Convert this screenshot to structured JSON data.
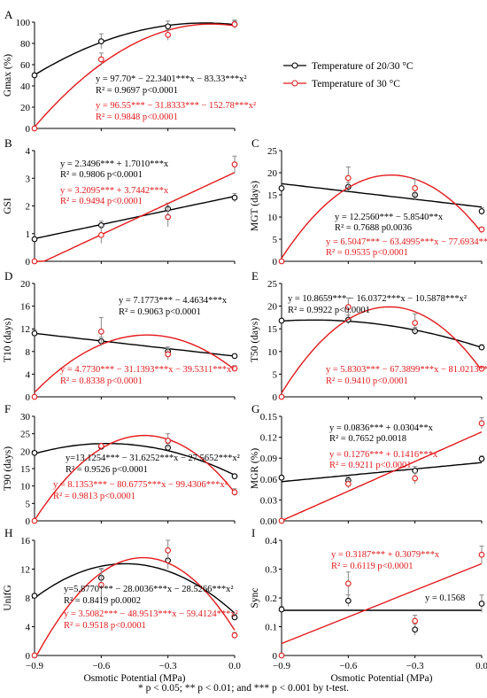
{
  "legend": {
    "entries": [
      {
        "label": "Temperature of 20/30 °C",
        "color": "#000000"
      },
      {
        "label": "Temperature of 30 °C",
        "color": "#e31a1c"
      }
    ]
  },
  "footnote": "* p < 0.05; ** p < 0.01; and *** p < 0.001 by t-test.",
  "colors": {
    "black": "#000000",
    "red": "#e31a1c"
  },
  "chart_data": [
    {
      "id": "A",
      "type": "scatter",
      "xlabel": "",
      "ylabel": "Gmax (%)",
      "xlim": [
        -0.9,
        0.0
      ],
      "ylim": [
        0,
        100
      ],
      "yticks": [
        "0",
        "20",
        "40",
        "60",
        "80",
        "100"
      ],
      "xticks": [],
      "series": [
        {
          "name": "Temperature of 20/30 °C",
          "color": "#000000",
          "x": [
            -0.9,
            -0.6,
            -0.3,
            0.0
          ],
          "y": [
            50,
            82,
            96,
            98
          ],
          "err": [
            2,
            7,
            5,
            3
          ],
          "fit": {
            "type": "quad",
            "a": 97.7,
            "b": -22.3401,
            "c": -83.33
          }
        },
        {
          "name": "Temperature of 30 °C",
          "color": "#e31a1c",
          "x": [
            -0.9,
            -0.6,
            -0.3,
            0.0
          ],
          "y": [
            0,
            65,
            88,
            98
          ],
          "err": [
            0,
            6,
            5,
            4
          ],
          "fit": {
            "type": "quad",
            "a": 96.55,
            "b": -31.8333,
            "c": -152.78
          }
        }
      ],
      "annotations": [
        {
          "text": "y = 97.70* − 22.3401***x − 83.33***x²",
          "color": "#000000"
        },
        {
          "text": "R² = 0.9697    p<0.0001",
          "color": "#000000"
        },
        {
          "text": "y = 96.55*** − 31.8333*** − 152.78***x²",
          "color": "#e31a1c"
        },
        {
          "text": "R² = 0.9848    p<0.0001",
          "color": "#e31a1c"
        }
      ]
    },
    {
      "id": "B",
      "type": "scatter",
      "xlabel": "",
      "ylabel": "GSI",
      "xlim": [
        -0.9,
        0.0
      ],
      "ylim": [
        0,
        4
      ],
      "yticks": [
        "0",
        "1",
        "2",
        "3",
        "4"
      ],
      "xticks": [],
      "series": [
        {
          "name": "Temperature of 20/30 °C",
          "color": "#000000",
          "x": [
            -0.9,
            -0.6,
            -0.3,
            0.0
          ],
          "y": [
            0.8,
            1.3,
            1.9,
            2.3
          ],
          "err": [
            0.05,
            0.15,
            0.2,
            0.15
          ],
          "fit": {
            "type": "lin",
            "a": 2.3496,
            "b": 1.701
          }
        },
        {
          "name": "Temperature of 30 °C",
          "color": "#e31a1c",
          "x": [
            -0.9,
            -0.6,
            -0.3,
            0.0
          ],
          "y": [
            0.0,
            0.95,
            1.6,
            3.5
          ],
          "err": [
            0,
            0.3,
            0.35,
            0.3
          ],
          "fit": {
            "type": "lin",
            "a": 3.2095,
            "b": 3.7442
          }
        }
      ],
      "annotations": [
        {
          "text": "y = 2.3496*** + 1.7010***x",
          "color": "#000000"
        },
        {
          "text": "R² = 0.9806    p<0.0001",
          "color": "#000000"
        },
        {
          "text": "y = 3.2095*** + 3.7442***x",
          "color": "#e31a1c"
        },
        {
          "text": "R² = 0.9494    p<0.0001",
          "color": "#e31a1c"
        }
      ]
    },
    {
      "id": "C",
      "type": "scatter",
      "xlabel": "",
      "ylabel": "MGT (days)",
      "xlim": [
        -0.9,
        0.0
      ],
      "ylim": [
        0,
        25
      ],
      "yticks": [
        "0",
        "5",
        "10",
        "15",
        "20",
        "25"
      ],
      "xticks": [],
      "series": [
        {
          "name": "Temperature of 20/30 °C",
          "color": "#000000",
          "x": [
            -0.9,
            -0.6,
            -0.3,
            0.0
          ],
          "y": [
            16.5,
            16.8,
            15.0,
            11.3
          ],
          "err": [
            0.5,
            1.0,
            1.2,
            0.8
          ],
          "fit": {
            "type": "lin",
            "a": 12.256,
            "b": -5.854
          }
        },
        {
          "name": "Temperature of 30 °C",
          "color": "#e31a1c",
          "x": [
            -0.9,
            -0.6,
            -0.3,
            0.0
          ],
          "y": [
            0.0,
            18.8,
            16.5,
            7.2
          ],
          "err": [
            0,
            2.5,
            2.0,
            0.5
          ],
          "fit": {
            "type": "quad",
            "a": 6.5047,
            "b": -63.4995,
            "c": -77.6934
          }
        }
      ],
      "annotations": [
        {
          "text": "y = 12.2560*** − 5.8540**x",
          "color": "#000000"
        },
        {
          "text": "R² = 0.7688    p0.0036",
          "color": "#000000"
        },
        {
          "text": "y = 6.5047*** − 63.4995***x − 77.6934***x²",
          "color": "#e31a1c"
        },
        {
          "text": "R² = 0.9535    p<0.0001",
          "color": "#e31a1c"
        }
      ]
    },
    {
      "id": "D",
      "type": "scatter",
      "xlabel": "",
      "ylabel": "T10 (days)",
      "xlim": [
        -0.9,
        0.0
      ],
      "ylim": [
        0,
        20
      ],
      "yticks": [
        "0",
        "4",
        "8",
        "12",
        "16",
        "20"
      ],
      "xticks": [],
      "series": [
        {
          "name": "Temperature of 20/30 °C",
          "color": "#000000",
          "x": [
            -0.9,
            -0.6,
            -0.3,
            0.0
          ],
          "y": [
            11.2,
            9.8,
            8.0,
            7.2
          ],
          "err": [
            0.6,
            0.7,
            0.8,
            0.3
          ],
          "fit": {
            "type": "lin",
            "a": 7.1773,
            "b": -4.4634
          }
        },
        {
          "name": "Temperature of 30 °C",
          "color": "#e31a1c",
          "x": [
            -0.9,
            -0.6,
            -0.3,
            0.0
          ],
          "y": [
            0.0,
            11.5,
            7.5,
            5.0
          ],
          "err": [
            0,
            2.5,
            1.0,
            0.5
          ],
          "fit": {
            "type": "quad",
            "a": 4.773,
            "b": -31.1393,
            "c": -39.5311
          }
        }
      ],
      "annotations": [
        {
          "text": "y = 7.1773*** − 4.4634***x",
          "color": "#000000"
        },
        {
          "text": "R² = 0.9063    p<0.0001",
          "color": "#000000"
        },
        {
          "text": "y = 4.7730*** − 31.1393***x − 39.5311***x²",
          "color": "#e31a1c"
        },
        {
          "text": "R² = 0.8338    p<0.0001",
          "color": "#e31a1c"
        }
      ]
    },
    {
      "id": "E",
      "type": "scatter",
      "xlabel": "",
      "ylabel": "T50 (days)",
      "xlim": [
        -0.9,
        0.0
      ],
      "ylim": [
        0,
        25
      ],
      "yticks": [
        "0",
        "5",
        "10",
        "15",
        "20",
        "25"
      ],
      "xticks": [],
      "series": [
        {
          "name": "Temperature of 20/30 °C",
          "color": "#000000",
          "x": [
            -0.9,
            -0.6,
            -0.3,
            0.0
          ],
          "y": [
            16.8,
            17.0,
            14.5,
            10.9
          ],
          "err": [
            0.4,
            1.0,
            0.8,
            0.6
          ],
          "fit": {
            "type": "quad",
            "a": 10.8659,
            "b": -16.0372,
            "c": -10.5878
          }
        },
        {
          "name": "Temperature of 30 °C",
          "color": "#e31a1c",
          "x": [
            -0.9,
            -0.6,
            -0.3,
            0.0
          ],
          "y": [
            0.0,
            19.8,
            16.3,
            6.2
          ],
          "err": [
            0,
            2.0,
            2.0,
            0.4
          ],
          "fit": {
            "type": "quad",
            "a": 5.8303,
            "b": -67.3899,
            "c": -81.0213
          }
        }
      ],
      "annotations": [
        {
          "text": "y = 10.8659*** − 16.0372***x − 10.5878***x²",
          "color": "#000000"
        },
        {
          "text": "R² = 0.9922    p<0.0001",
          "color": "#000000"
        },
        {
          "text": "y = 5.8303*** − 67.3899***x − 81.0213***x²",
          "color": "#e31a1c"
        },
        {
          "text": "R² = 0.9410    p<0.0001",
          "color": "#e31a1c"
        }
      ]
    },
    {
      "id": "F",
      "type": "scatter",
      "xlabel": "",
      "ylabel": "T90 (days)",
      "xlim": [
        -0.9,
        0.0
      ],
      "ylim": [
        0,
        30
      ],
      "yticks": [
        "0",
        "5",
        "10",
        "15",
        "20",
        "25",
        "30"
      ],
      "xticks": [],
      "series": [
        {
          "name": "Temperature of 20/30 °C",
          "color": "#000000",
          "x": [
            -0.9,
            -0.6,
            -0.3,
            0.0
          ],
          "y": [
            19.5,
            21.3,
            21.0,
            12.8
          ],
          "err": [
            0.4,
            0.6,
            1.2,
            0.5
          ],
          "fit": {
            "type": "quad",
            "a": 13.1254,
            "b": -31.6252,
            "c": -27.5652
          }
        },
        {
          "name": "Temperature of 30 °C",
          "color": "#e31a1c",
          "x": [
            -0.9,
            -0.6,
            -0.3,
            0.0
          ],
          "y": [
            0.0,
            21.5,
            23.0,
            8.2
          ],
          "err": [
            0,
            0.6,
            2.0,
            1.0
          ],
          "fit": {
            "type": "quad",
            "a": 8.1353,
            "b": -80.6775,
            "c": -99.4306
          }
        }
      ],
      "annotations": [
        {
          "text": "y=13.1254*** − 31.6252***x − 27.5652***x²",
          "color": "#000000"
        },
        {
          "text": "R² = 0.9526    p<0.0001",
          "color": "#000000"
        },
        {
          "text": "y = 8.1353*** − 80.6775***x − 99.4306***x²",
          "color": "#e31a1c"
        },
        {
          "text": "R² = 0.9813    p<0.0001",
          "color": "#e31a1c"
        }
      ]
    },
    {
      "id": "G",
      "type": "scatter",
      "xlabel": "",
      "ylabel": "MGR (%)",
      "xlim": [
        -0.9,
        0.0
      ],
      "ylim": [
        0,
        0.15
      ],
      "yticks": [
        "0.00",
        "0.03",
        "0.06",
        "0.09",
        "0.12",
        "0.15"
      ],
      "xticks": [],
      "series": [
        {
          "name": "Temperature of 20/30 °C",
          "color": "#000000",
          "x": [
            -0.9,
            -0.6,
            -0.3,
            0.0
          ],
          "y": [
            0.062,
            0.058,
            0.072,
            0.089
          ],
          "err": [
            0.003,
            0.005,
            0.006,
            0.004
          ],
          "fit": {
            "type": "lin",
            "a": 0.0836,
            "b": 0.0304
          }
        },
        {
          "name": "Temperature of 30 °C",
          "color": "#e31a1c",
          "x": [
            -0.9,
            -0.6,
            -0.3,
            0.0
          ],
          "y": [
            0.0,
            0.053,
            0.061,
            0.14
          ],
          "err": [
            0,
            0.006,
            0.008,
            0.008
          ],
          "fit": {
            "type": "lin",
            "a": 0.1276,
            "b": 0.1416
          }
        }
      ],
      "annotations": [
        {
          "text": "y = 0.0836*** + 0.0304**x",
          "color": "#000000"
        },
        {
          "text": "R² = 0.7652    p0.0018",
          "color": "#000000"
        },
        {
          "text": "y = 0.1276*** + 0.1416***x",
          "color": "#e31a1c"
        },
        {
          "text": "R² = 0.9211    p<0.0001",
          "color": "#e31a1c"
        }
      ]
    },
    {
      "id": "H",
      "type": "scatter",
      "xlabel": "Osmotic Potential (MPa)",
      "ylabel": "UnifG",
      "xlim": [
        -0.9,
        0.0
      ],
      "ylim": [
        0,
        16
      ],
      "yticks": [
        "0",
        "4",
        "8",
        "12",
        "16"
      ],
      "xticks": [
        "−0.9",
        "−0.6",
        "−0.3",
        "0.0"
      ],
      "series": [
        {
          "name": "Temperature of 20/30 °C",
          "color": "#000000",
          "x": [
            -0.9,
            -0.6,
            -0.3,
            0.0
          ],
          "y": [
            8.3,
            10.8,
            13.2,
            5.3
          ],
          "err": [
            0.3,
            1.3,
            1.2,
            0.4
          ],
          "fit": {
            "type": "quad",
            "a": 5.877,
            "b": -28.0036,
            "c": -28.5266
          }
        },
        {
          "name": "Temperature of 30 °C",
          "color": "#e31a1c",
          "x": [
            -0.9,
            -0.6,
            -0.3,
            0.0
          ],
          "y": [
            0.0,
            9.8,
            14.6,
            2.8
          ],
          "err": [
            0,
            2.2,
            1.4,
            0.4
          ],
          "fit": {
            "type": "quad",
            "a": 3.5082,
            "b": -48.9513,
            "c": -59.4124
          }
        }
      ],
      "annotations": [
        {
          "text": "y=5.8770*** − 28.0036***x − 28.5266***x²",
          "color": "#000000"
        },
        {
          "text": "R² = 0.8419    p0.0002",
          "color": "#000000"
        },
        {
          "text": "y = 3.5082*** − 48.9513***x − 59.4124***x²",
          "color": "#e31a1c"
        },
        {
          "text": "R² = 0.9518    p<0.0001",
          "color": "#e31a1c"
        }
      ]
    },
    {
      "id": "I",
      "type": "scatter",
      "xlabel": "Osmotic Potential (MPa)",
      "ylabel": "Sync",
      "xlim": [
        -0.9,
        0.0
      ],
      "ylim": [
        0,
        0.4
      ],
      "yticks": [
        "0",
        "0.1",
        "0.2",
        "0.3",
        "0.4"
      ],
      "xticks": [
        "−0.9",
        "−0.6",
        "−0.3",
        "0.0"
      ],
      "series": [
        {
          "name": "Temperature of 20/30 °C",
          "color": "#000000",
          "x": [
            -0.9,
            -0.6,
            -0.3,
            0.0
          ],
          "y": [
            0.16,
            0.19,
            0.09,
            0.18
          ],
          "err": [
            0.01,
            0.02,
            0.02,
            0.03
          ],
          "fit": {
            "type": "lin",
            "a": 0.1568,
            "b": 0
          }
        },
        {
          "name": "Temperature of 30 °C",
          "color": "#e31a1c",
          "x": [
            -0.9,
            -0.6,
            -0.3,
            0.0
          ],
          "y": [
            0.0,
            0.25,
            0.12,
            0.35
          ],
          "err": [
            0,
            0.04,
            0.02,
            0.03
          ],
          "fit": {
            "type": "lin",
            "a": 0.3187,
            "b": 0.3079
          }
        }
      ],
      "annotations": [
        {
          "text": "y = 0.3187*** + 0.3079***x",
          "color": "#e31a1c"
        },
        {
          "text": "R² = 0.6119    p<0.0001",
          "color": "#e31a1c"
        },
        {
          "text": "y = 0.1568",
          "color": "#000000"
        }
      ]
    }
  ]
}
